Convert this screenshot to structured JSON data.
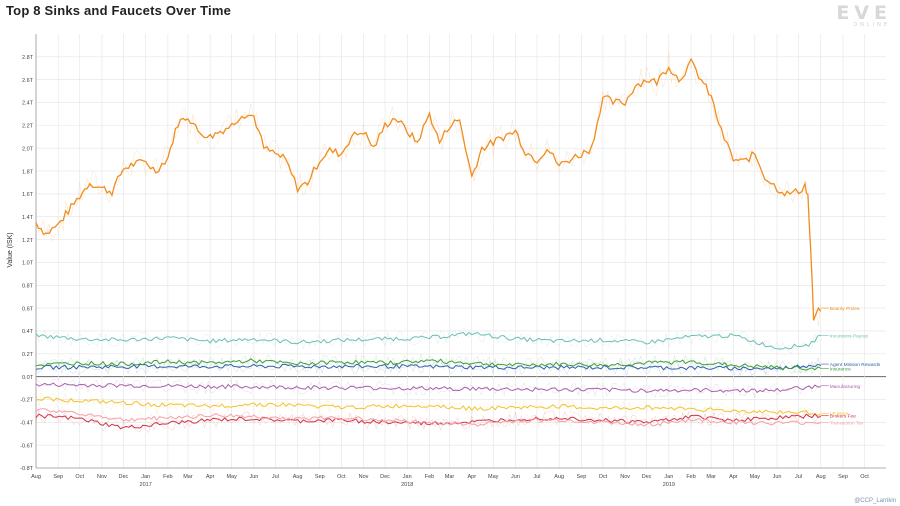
{
  "title": "Top 8 Sinks and Faucets Over Time",
  "logo": {
    "main": "EVE",
    "sub": "ONLINE"
  },
  "credit": "@CCP_Larrikin",
  "chart_data": {
    "type": "line",
    "title": "Top 8 Sinks and Faucets Over Time",
    "xlabel": "",
    "ylabel": "Value (ISK)",
    "ylim": [
      -0.8,
      3.0
    ],
    "grid": true,
    "x_domain": [
      "2016-08-01",
      "2019-10-31"
    ],
    "y_ticks": [
      {
        "v": 2.8,
        "label": "2.8T"
      },
      {
        "v": 2.6,
        "label": "2.6T"
      },
      {
        "v": 2.4,
        "label": "2.4T"
      },
      {
        "v": 2.2,
        "label": "2.2T"
      },
      {
        "v": 2.0,
        "label": "2.0T"
      },
      {
        "v": 1.8,
        "label": "1.8T"
      },
      {
        "v": 1.6,
        "label": "1.6T"
      },
      {
        "v": 1.4,
        "label": "1.4T"
      },
      {
        "v": 1.2,
        "label": "1.2T"
      },
      {
        "v": 1.0,
        "label": "1.0T"
      },
      {
        "v": 0.8,
        "label": "0.8T"
      },
      {
        "v": 0.6,
        "label": "0.6T"
      },
      {
        "v": 0.4,
        "label": "0.4T"
      },
      {
        "v": 0.2,
        "label": "0.2T"
      },
      {
        "v": 0.0,
        "label": "0.0T"
      },
      {
        "v": -0.2,
        "label": "-0.2T"
      },
      {
        "v": -0.4,
        "label": "-0.4T"
      },
      {
        "v": -0.6,
        "label": "-0.6T"
      },
      {
        "v": -0.8,
        "label": "-0.8T"
      }
    ],
    "x_ticks": [
      {
        "date": "2016-08-01",
        "label": "Aug"
      },
      {
        "date": "2016-09-01",
        "label": "Sep"
      },
      {
        "date": "2016-10-01",
        "label": "Oct"
      },
      {
        "date": "2016-11-01",
        "label": "Nov"
      },
      {
        "date": "2016-12-01",
        "label": "Dec"
      },
      {
        "date": "2017-01-01",
        "label": "Jan",
        "year": "2017"
      },
      {
        "date": "2017-02-01",
        "label": "Feb"
      },
      {
        "date": "2017-03-01",
        "label": "Mar"
      },
      {
        "date": "2017-04-01",
        "label": "Apr"
      },
      {
        "date": "2017-05-01",
        "label": "May"
      },
      {
        "date": "2017-06-01",
        "label": "Jun"
      },
      {
        "date": "2017-07-01",
        "label": "Jul"
      },
      {
        "date": "2017-08-01",
        "label": "Aug"
      },
      {
        "date": "2017-09-01",
        "label": "Sep"
      },
      {
        "date": "2017-10-01",
        "label": "Oct"
      },
      {
        "date": "2017-11-01",
        "label": "Nov"
      },
      {
        "date": "2017-12-01",
        "label": "Dec"
      },
      {
        "date": "2018-01-01",
        "label": "Jan",
        "year": "2018"
      },
      {
        "date": "2018-02-01",
        "label": "Feb"
      },
      {
        "date": "2018-03-01",
        "label": "Mar"
      },
      {
        "date": "2018-04-01",
        "label": "Apr"
      },
      {
        "date": "2018-05-01",
        "label": "May"
      },
      {
        "date": "2018-06-01",
        "label": "Jun"
      },
      {
        "date": "2018-07-01",
        "label": "Jul"
      },
      {
        "date": "2018-08-01",
        "label": "Aug"
      },
      {
        "date": "2018-09-01",
        "label": "Sep"
      },
      {
        "date": "2018-10-01",
        "label": "Oct"
      },
      {
        "date": "2018-11-01",
        "label": "Nov"
      },
      {
        "date": "2018-12-01",
        "label": "Dec"
      },
      {
        "date": "2019-01-01",
        "label": "Jan",
        "year": "2019"
      },
      {
        "date": "2019-02-01",
        "label": "Feb"
      },
      {
        "date": "2019-03-01",
        "label": "Mar"
      },
      {
        "date": "2019-04-01",
        "label": "Apr"
      },
      {
        "date": "2019-05-01",
        "label": "May"
      },
      {
        "date": "2019-06-01",
        "label": "Jun"
      },
      {
        "date": "2019-07-01",
        "label": "Jul"
      },
      {
        "date": "2019-08-01",
        "label": "Aug"
      },
      {
        "date": "2019-09-01",
        "label": "Sep"
      },
      {
        "date": "2019-10-01",
        "label": "Oct"
      }
    ],
    "series": [
      {
        "name": "Bounty Prizes",
        "color": "#f28c1e",
        "width": 1.3,
        "x": [
          "2016-08-01",
          "2016-08-15",
          "2016-09-01",
          "2016-09-15",
          "2016-10-01",
          "2016-10-15",
          "2016-11-01",
          "2016-11-15",
          "2016-12-01",
          "2016-12-15",
          "2017-01-01",
          "2017-01-15",
          "2017-02-01",
          "2017-02-15",
          "2017-03-01",
          "2017-03-15",
          "2017-04-01",
          "2017-04-15",
          "2017-05-01",
          "2017-05-15",
          "2017-06-01",
          "2017-06-15",
          "2017-07-01",
          "2017-07-15",
          "2017-08-01",
          "2017-08-15",
          "2017-09-01",
          "2017-09-15",
          "2017-10-01",
          "2017-10-15",
          "2017-11-01",
          "2017-11-15",
          "2017-12-01",
          "2017-12-15",
          "2018-01-01",
          "2018-01-15",
          "2018-02-01",
          "2018-02-15",
          "2018-03-01",
          "2018-03-15",
          "2018-04-01",
          "2018-04-15",
          "2018-05-01",
          "2018-05-15",
          "2018-06-01",
          "2018-06-15",
          "2018-07-01",
          "2018-07-15",
          "2018-08-01",
          "2018-08-15",
          "2018-09-01",
          "2018-09-15",
          "2018-10-01",
          "2018-10-15",
          "2018-11-01",
          "2018-11-15",
          "2018-12-01",
          "2018-12-15",
          "2019-01-01",
          "2019-01-15",
          "2019-02-01",
          "2019-02-15",
          "2019-03-01",
          "2019-03-15",
          "2019-04-01",
          "2019-04-15",
          "2019-05-01",
          "2019-05-15",
          "2019-06-01",
          "2019-06-15",
          "2019-07-01",
          "2019-07-10",
          "2019-07-14",
          "2019-07-18",
          "2019-07-22",
          "2019-08-01"
        ],
        "y": [
          1.35,
          1.25,
          1.33,
          1.45,
          1.58,
          1.7,
          1.65,
          1.62,
          1.82,
          1.86,
          1.88,
          1.8,
          1.92,
          2.22,
          2.28,
          2.15,
          2.1,
          2.15,
          2.2,
          2.3,
          2.28,
          2.0,
          1.95,
          1.9,
          1.65,
          1.7,
          1.9,
          1.98,
          1.95,
          2.1,
          2.15,
          2.0,
          2.2,
          2.27,
          2.15,
          2.05,
          2.3,
          2.05,
          2.2,
          2.25,
          1.75,
          2.0,
          2.05,
          2.1,
          2.15,
          1.97,
          1.9,
          2.0,
          1.85,
          1.9,
          1.95,
          2.0,
          2.45,
          2.4,
          2.4,
          2.55,
          2.6,
          2.58,
          2.72,
          2.6,
          2.75,
          2.6,
          2.45,
          2.15,
          1.9,
          1.88,
          1.95,
          1.75,
          1.65,
          1.6,
          1.62,
          1.68,
          1.58,
          1.1,
          0.5,
          0.6
        ]
      },
      {
        "name": "Incursions Payout",
        "color": "#6cbfb4",
        "width": 1.0,
        "x": [
          "2016-08-01",
          "2016-10-01",
          "2016-12-01",
          "2017-02-01",
          "2017-04-01",
          "2017-06-01",
          "2017-08-01",
          "2017-10-01",
          "2017-12-01",
          "2018-02-01",
          "2018-04-01",
          "2018-06-01",
          "2018-08-01",
          "2018-10-01",
          "2018-12-01",
          "2019-02-01",
          "2019-04-01",
          "2019-06-01",
          "2019-07-15",
          "2019-08-01"
        ],
        "y": [
          0.36,
          0.33,
          0.32,
          0.34,
          0.31,
          0.33,
          0.3,
          0.32,
          0.33,
          0.34,
          0.38,
          0.33,
          0.31,
          0.32,
          0.3,
          0.35,
          0.36,
          0.25,
          0.28,
          0.36
        ]
      },
      {
        "name": "Agent Mission Rewards",
        "color": "#2f5fa8",
        "width": 1.0,
        "x": [
          "2016-08-01",
          "2017-01-01",
          "2017-06-01",
          "2017-12-01",
          "2018-06-01",
          "2018-12-01",
          "2019-06-01",
          "2019-08-01"
        ],
        "y": [
          0.08,
          0.09,
          0.09,
          0.09,
          0.08,
          0.08,
          0.07,
          0.11
        ]
      },
      {
        "name": "Insurance",
        "color": "#3a9d3a",
        "width": 1.0,
        "x": [
          "2016-08-01",
          "2016-10-01",
          "2016-12-01",
          "2017-02-01",
          "2017-04-01",
          "2017-06-01",
          "2017-08-01",
          "2017-10-01",
          "2017-12-01",
          "2018-02-01",
          "2018-04-01",
          "2018-06-01",
          "2018-08-01",
          "2018-10-01",
          "2018-12-01",
          "2019-02-01",
          "2019-04-01",
          "2019-06-01",
          "2019-08-01"
        ],
        "y": [
          0.1,
          0.12,
          0.11,
          0.13,
          0.12,
          0.14,
          0.11,
          0.13,
          0.12,
          0.14,
          0.12,
          0.1,
          0.11,
          0.1,
          0.12,
          0.13,
          0.1,
          0.08,
          0.07
        ]
      },
      {
        "name": "Manufacturing",
        "color": "#a760a8",
        "width": 1.0,
        "x": [
          "2016-08-01",
          "2017-01-01",
          "2017-06-01",
          "2017-12-01",
          "2018-06-01",
          "2018-12-01",
          "2019-06-01",
          "2019-08-01"
        ],
        "y": [
          -0.07,
          -0.08,
          -0.09,
          -0.1,
          -0.11,
          -0.12,
          -0.12,
          -0.08
        ]
      },
      {
        "name": "LP Store",
        "color": "#f2c12e",
        "width": 1.0,
        "x": [
          "2016-08-01",
          "2016-10-01",
          "2016-12-01",
          "2017-02-01",
          "2017-04-01",
          "2017-06-01",
          "2017-08-01",
          "2017-10-01",
          "2017-12-01",
          "2018-02-01",
          "2018-04-01",
          "2018-06-01",
          "2018-08-01",
          "2018-10-01",
          "2018-12-01",
          "2019-02-01",
          "2019-04-01",
          "2019-06-01",
          "2019-08-01"
        ],
        "y": [
          -0.19,
          -0.21,
          -0.23,
          -0.25,
          -0.26,
          -0.24,
          -0.25,
          -0.27,
          -0.26,
          -0.25,
          -0.28,
          -0.27,
          -0.26,
          -0.28,
          -0.27,
          -0.28,
          -0.3,
          -0.31,
          -0.32
        ]
      },
      {
        "name": "Brokers Fee",
        "color": "#cc3344",
        "width": 1.0,
        "x": [
          "2016-08-01",
          "2016-10-01",
          "2016-12-01",
          "2017-02-01",
          "2017-04-01",
          "2017-06-01",
          "2017-08-01",
          "2017-10-01",
          "2017-12-01",
          "2018-02-01",
          "2018-04-01",
          "2018-06-01",
          "2018-08-01",
          "2018-10-01",
          "2018-12-01",
          "2019-02-01",
          "2019-04-01",
          "2019-06-01",
          "2019-08-01"
        ],
        "y": [
          -0.34,
          -0.37,
          -0.45,
          -0.41,
          -0.38,
          -0.37,
          -0.39,
          -0.38,
          -0.4,
          -0.41,
          -0.4,
          -0.37,
          -0.36,
          -0.38,
          -0.4,
          -0.35,
          -0.38,
          -0.36,
          -0.34
        ]
      },
      {
        "name": "Transaction Tax",
        "color": "#f4a0a8",
        "width": 1.0,
        "x": [
          "2016-08-01",
          "2016-10-01",
          "2016-12-01",
          "2017-02-01",
          "2017-04-01",
          "2017-06-01",
          "2017-08-01",
          "2017-10-01",
          "2017-12-01",
          "2018-02-01",
          "2018-04-01",
          "2018-06-01",
          "2018-08-01",
          "2018-10-01",
          "2018-12-01",
          "2019-02-01",
          "2019-04-01",
          "2019-06-01",
          "2019-08-01"
        ],
        "y": [
          -0.29,
          -0.32,
          -0.38,
          -0.36,
          -0.34,
          -0.35,
          -0.37,
          -0.36,
          -0.38,
          -0.4,
          -0.42,
          -0.39,
          -0.38,
          -0.4,
          -0.42,
          -0.38,
          -0.4,
          -0.41,
          -0.4
        ]
      }
    ]
  }
}
